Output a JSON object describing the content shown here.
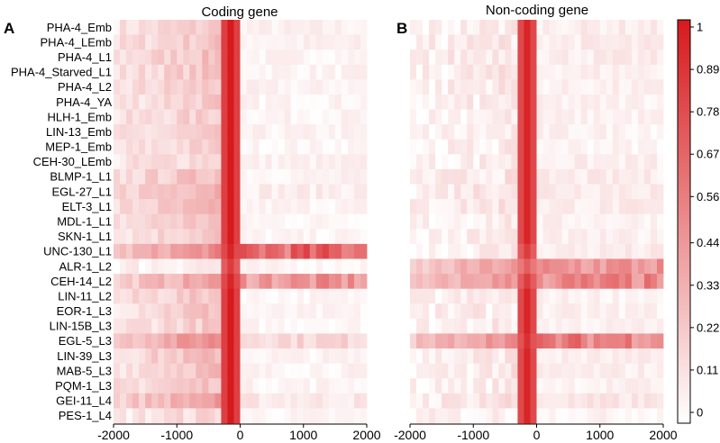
{
  "chart_data": [
    {
      "panel_label": "A",
      "title": "Coding gene",
      "type": "heatmap",
      "rows": [
        "PHA-4_Emb",
        "PHA-4_LEmb",
        "PHA-4_L1",
        "PHA-4_Starved_L1",
        "PHA-4_L2",
        "PHA-4_YA",
        "HLH-1_Emb",
        "LIN-13_Emb",
        "MEP-1_Emb",
        "CEH-30_LEmb",
        "BLMP-1_L1",
        "EGL-27_L1",
        "ELT-3_L1",
        "MDL-1_L1",
        "SKN-1_L1",
        "UNC-130_L1",
        "ALR-1_L2",
        "CEH-14_L2",
        "LIN-11_L2",
        "EOR-1_L3",
        "LIN-15B_L3",
        "EGL-5_L3",
        "LIN-39_L3",
        "MAB-5_L3",
        "PQM-1_L3",
        "GEI-11_L4",
        "PES-1_L4"
      ],
      "xlim": [
        -2000,
        2000
      ],
      "x_ticks": [
        "-2000",
        "-1000",
        "0",
        "1000",
        "2000"
      ],
      "bin_width": 100,
      "peak_position": -150,
      "row_levels": [
        {
          "up": 0.25,
          "peak": 1.0,
          "down": 0.06
        },
        {
          "up": 0.28,
          "peak": 1.0,
          "down": 0.06
        },
        {
          "up": 0.3,
          "peak": 1.0,
          "down": 0.05
        },
        {
          "up": 0.28,
          "peak": 1.0,
          "down": 0.05
        },
        {
          "up": 0.26,
          "peak": 1.0,
          "down": 0.05
        },
        {
          "up": 0.26,
          "peak": 1.0,
          "down": 0.05
        },
        {
          "up": 0.24,
          "peak": 1.0,
          "down": 0.05
        },
        {
          "up": 0.22,
          "peak": 1.0,
          "down": 0.05
        },
        {
          "up": 0.22,
          "peak": 1.0,
          "down": 0.04
        },
        {
          "up": 0.22,
          "peak": 1.0,
          "down": 0.06
        },
        {
          "up": 0.32,
          "peak": 1.0,
          "down": 0.05
        },
        {
          "up": 0.4,
          "peak": 1.0,
          "down": 0.08
        },
        {
          "up": 0.32,
          "peak": 1.0,
          "down": 0.05
        },
        {
          "up": 0.3,
          "peak": 1.0,
          "down": 0.04
        },
        {
          "up": 0.28,
          "peak": 1.0,
          "down": 0.04
        },
        {
          "up": 0.55,
          "peak": 0.95,
          "down": 0.65
        },
        {
          "up": 0.12,
          "peak": 0.85,
          "down": 0.04
        },
        {
          "up": 0.45,
          "peak": 0.95,
          "down": 0.45
        },
        {
          "up": 0.28,
          "peak": 1.0,
          "down": 0.04
        },
        {
          "up": 0.3,
          "peak": 1.0,
          "down": 0.04
        },
        {
          "up": 0.26,
          "peak": 1.0,
          "down": 0.04
        },
        {
          "up": 0.55,
          "peak": 1.0,
          "down": 0.18
        },
        {
          "up": 0.32,
          "peak": 1.0,
          "down": 0.05
        },
        {
          "up": 0.32,
          "peak": 1.0,
          "down": 0.05
        },
        {
          "up": 0.3,
          "peak": 1.0,
          "down": 0.05
        },
        {
          "up": 0.45,
          "peak": 1.0,
          "down": 0.1
        },
        {
          "up": 0.2,
          "peak": 1.0,
          "down": 0.04
        }
      ]
    },
    {
      "panel_label": "B",
      "title": "Non-coding gene",
      "type": "heatmap",
      "xlim": [
        -2000,
        2000
      ],
      "x_ticks": [
        "-2000",
        "-1000",
        "0",
        "1000",
        "2000"
      ],
      "bin_width": 100,
      "peak_position": -150,
      "row_levels": [
        {
          "up": 0.1,
          "peak": 0.95,
          "down": 0.08
        },
        {
          "up": 0.12,
          "peak": 0.95,
          "down": 0.08
        },
        {
          "up": 0.14,
          "peak": 0.95,
          "down": 0.08
        },
        {
          "up": 0.12,
          "peak": 0.95,
          "down": 0.07
        },
        {
          "up": 0.12,
          "peak": 0.95,
          "down": 0.06
        },
        {
          "up": 0.1,
          "peak": 0.95,
          "down": 0.06
        },
        {
          "up": 0.1,
          "peak": 0.95,
          "down": 0.06
        },
        {
          "up": 0.08,
          "peak": 0.95,
          "down": 0.06
        },
        {
          "up": 0.08,
          "peak": 0.95,
          "down": 0.05
        },
        {
          "up": 0.1,
          "peak": 0.95,
          "down": 0.07
        },
        {
          "up": 0.12,
          "peak": 0.95,
          "down": 0.08
        },
        {
          "up": 0.16,
          "peak": 0.95,
          "down": 0.1
        },
        {
          "up": 0.14,
          "peak": 0.95,
          "down": 0.08
        },
        {
          "up": 0.1,
          "peak": 0.95,
          "down": 0.06
        },
        {
          "up": 0.1,
          "peak": 0.95,
          "down": 0.06
        },
        {
          "up": 0.1,
          "peak": 0.85,
          "down": 0.08
        },
        {
          "up": 0.45,
          "peak": 0.7,
          "down": 0.45
        },
        {
          "up": 0.5,
          "peak": 0.85,
          "down": 0.5
        },
        {
          "up": 0.1,
          "peak": 0.95,
          "down": 0.06
        },
        {
          "up": 0.1,
          "peak": 0.95,
          "down": 0.06
        },
        {
          "up": 0.1,
          "peak": 0.95,
          "down": 0.06
        },
        {
          "up": 0.55,
          "peak": 0.9,
          "down": 0.55
        },
        {
          "up": 0.12,
          "peak": 0.95,
          "down": 0.07
        },
        {
          "up": 0.12,
          "peak": 0.95,
          "down": 0.07
        },
        {
          "up": 0.1,
          "peak": 0.95,
          "down": 0.06
        },
        {
          "up": 0.16,
          "peak": 0.95,
          "down": 0.1
        },
        {
          "up": 0.08,
          "peak": 0.95,
          "down": 0.05
        }
      ]
    }
  ],
  "colorbar": {
    "range": [
      0,
      1
    ],
    "ticks": [
      "0",
      "0.11",
      "0.22",
      "0.33",
      "0.44",
      "0.56",
      "0.67",
      "0.78",
      "0.89",
      "1"
    ],
    "low_color": "#ffffff",
    "high_color": "#d7191c"
  }
}
